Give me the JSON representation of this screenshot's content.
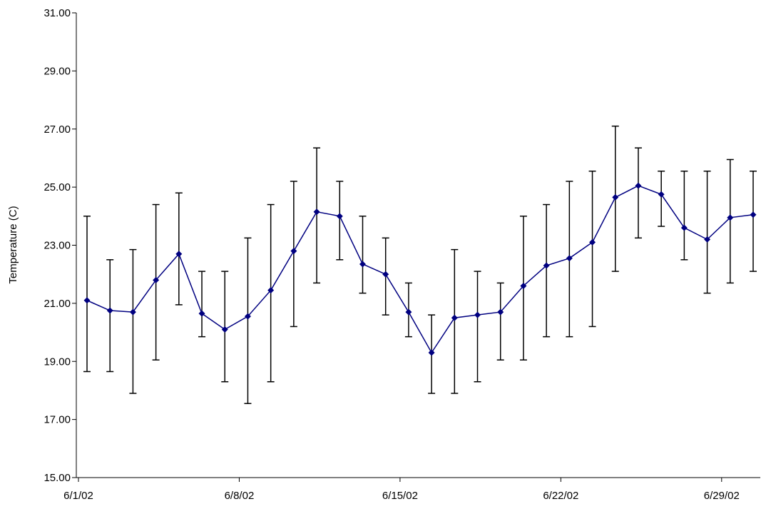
{
  "chart_data": {
    "type": "line",
    "title": "",
    "xlabel": "",
    "ylabel": "Temperature (C)",
    "ylim": [
      15,
      31
    ],
    "yticks": [
      "15.00",
      "17.00",
      "19.00",
      "21.00",
      "23.00",
      "25.00",
      "27.00",
      "29.00",
      "31.00"
    ],
    "xlim": [
      "2002-06-01",
      "2002-06-30"
    ],
    "xticks": [
      {
        "date": "2002-06-01",
        "label": "6/1/02"
      },
      {
        "date": "2002-06-08",
        "label": "6/8/02"
      },
      {
        "date": "2002-06-15",
        "label": "6/15/02"
      },
      {
        "date": "2002-06-22",
        "label": "6/22/02"
      },
      {
        "date": "2002-06-29",
        "label": "6/29/02"
      }
    ],
    "grid": false,
    "legend": "none",
    "series": [
      {
        "color": "#000080",
        "marker": "diamond",
        "x": [
          "2002-06-01",
          "2002-06-02",
          "2002-06-03",
          "2002-06-04",
          "2002-06-05",
          "2002-06-06",
          "2002-06-07",
          "2002-06-08",
          "2002-06-09",
          "2002-06-10",
          "2002-06-11",
          "2002-06-12",
          "2002-06-13",
          "2002-06-14",
          "2002-06-15",
          "2002-06-16",
          "2002-06-17",
          "2002-06-18",
          "2002-06-19",
          "2002-06-20",
          "2002-06-21",
          "2002-06-22",
          "2002-06-23",
          "2002-06-24",
          "2002-06-25",
          "2002-06-26",
          "2002-06-27",
          "2002-06-28",
          "2002-06-29",
          "2002-06-30"
        ],
        "y": [
          21.1,
          20.75,
          20.7,
          21.8,
          22.7,
          20.65,
          20.1,
          20.55,
          21.45,
          22.8,
          24.15,
          24.0,
          22.35,
          22.0,
          20.7,
          19.3,
          20.5,
          20.6,
          20.7,
          21.6,
          22.3,
          22.55,
          23.1,
          24.65,
          25.05,
          24.75,
          23.6,
          23.2,
          23.95,
          24.05
        ],
        "err_low": [
          18.65,
          18.65,
          17.9,
          19.05,
          20.95,
          19.85,
          18.3,
          17.55,
          18.3,
          20.2,
          21.7,
          22.5,
          21.35,
          20.6,
          19.85,
          17.9,
          17.9,
          18.3,
          19.05,
          19.05,
          19.85,
          19.85,
          20.2,
          22.1,
          23.25,
          23.65,
          22.5,
          21.35,
          21.7,
          22.1
        ],
        "err_high": [
          24.0,
          22.5,
          22.85,
          24.4,
          24.8,
          22.1,
          22.1,
          23.25,
          24.4,
          25.2,
          26.35,
          25.2,
          24.0,
          23.25,
          21.7,
          20.6,
          22.85,
          22.1,
          21.7,
          24.0,
          24.4,
          25.2,
          25.55,
          27.1,
          26.35,
          25.55,
          25.55,
          25.55,
          25.95,
          25.55
        ]
      }
    ]
  }
}
